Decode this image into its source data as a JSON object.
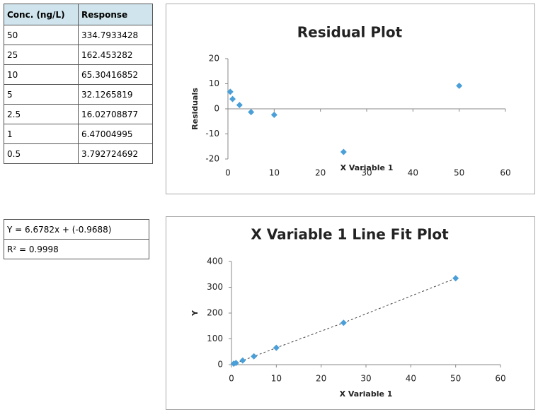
{
  "table": {
    "header": [
      "Conc. (ng/L)",
      "Response"
    ],
    "rows": [
      [
        "50",
        "334.7933428"
      ],
      [
        "25",
        "162.453282"
      ],
      [
        "10",
        "65.30416852"
      ],
      [
        "5",
        "32.1265819"
      ],
      [
        "2.5",
        "16.02708877"
      ],
      [
        "1",
        "6.47004995"
      ],
      [
        "0.5",
        "3.792724692"
      ]
    ]
  },
  "fit": {
    "equation": "Y = 6.6782x + (-0.9688)",
    "r_squared": "R² = 0.9998"
  },
  "chart_data": [
    {
      "type": "scatter",
      "title": "Residual Plot",
      "x_label": "X Variable 1",
      "y_label": "Residuals",
      "x": [
        50,
        25,
        10,
        5,
        2.5,
        1,
        0.5
      ],
      "values": [
        9.2,
        -17.2,
        -2.4,
        -1.3,
        1.5,
        3.9,
        6.8
      ],
      "color": "#4a9fd8",
      "xlim": [
        0,
        60
      ],
      "xticks": [
        0,
        10,
        20,
        30,
        40,
        50,
        60
      ],
      "ylim": [
        -20,
        20
      ],
      "yticks": [
        -20,
        -10,
        0,
        10,
        20
      ]
    },
    {
      "type": "scatter",
      "title": "X Variable 1 Line Fit  Plot",
      "x_label": "X Variable 1",
      "y_label": "Y",
      "x": [
        50,
        25,
        10,
        5,
        2.5,
        1,
        0.5
      ],
      "values": [
        334.7933428,
        162.453282,
        65.30416852,
        32.1265819,
        16.02708877,
        6.47004995,
        3.792724692
      ],
      "color": "#4a9fd8",
      "trendline": true,
      "xlim": [
        0,
        60
      ],
      "xticks": [
        0,
        10,
        20,
        30,
        40,
        50,
        60
      ],
      "ylim": [
        0,
        400
      ],
      "yticks": [
        0,
        100,
        200,
        300,
        400
      ]
    }
  ]
}
